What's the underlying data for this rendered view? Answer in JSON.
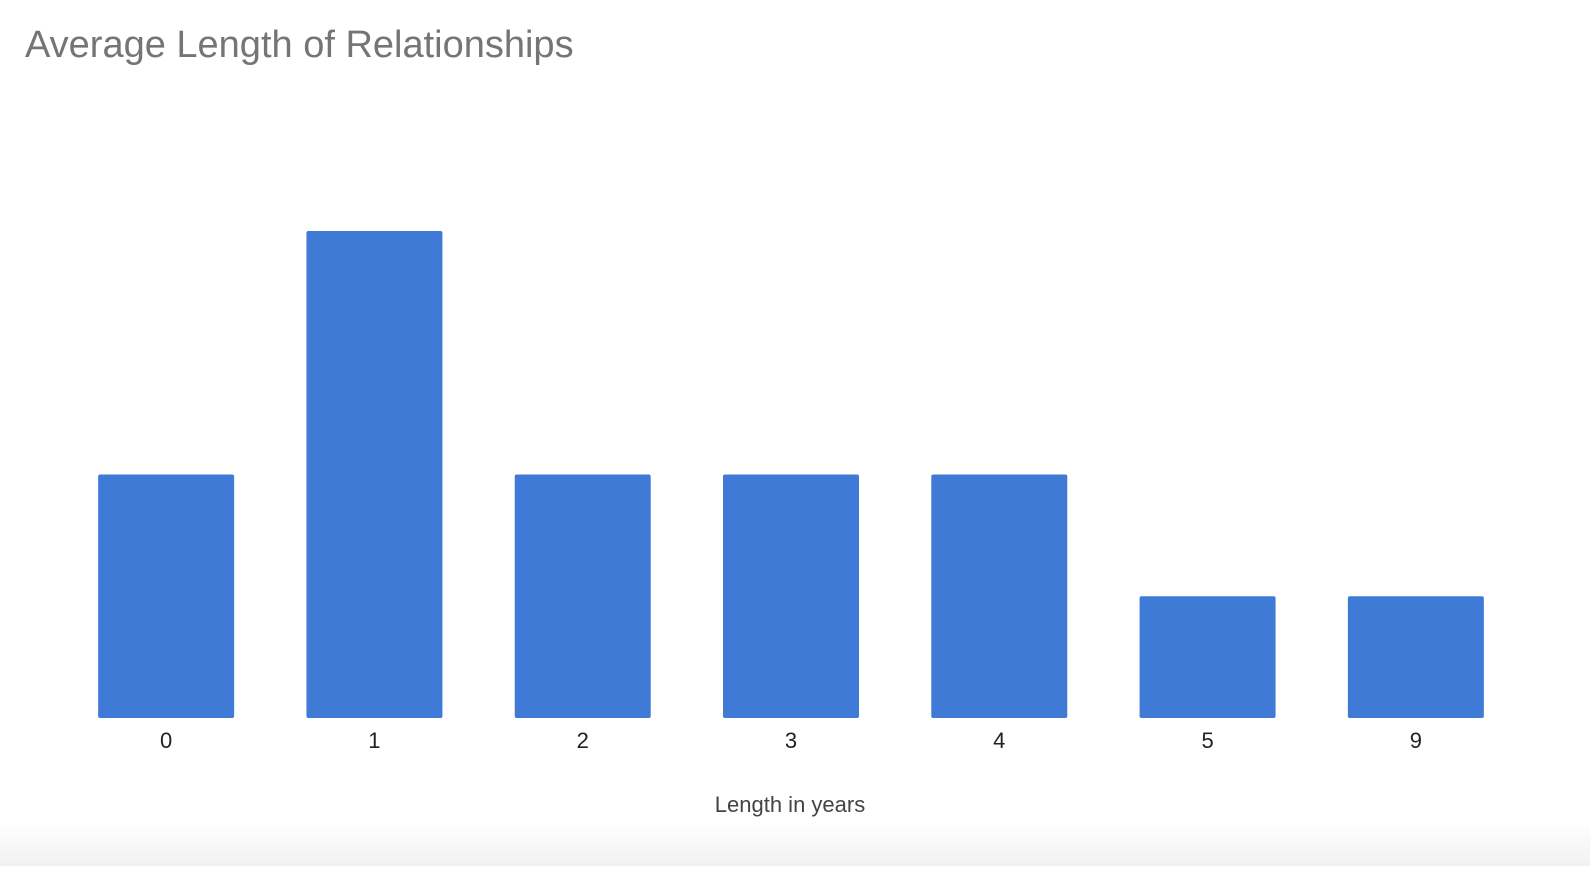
{
  "chart_data": {
    "type": "bar",
    "title": "Average Length of Relationships",
    "x_label": "Length in years",
    "categories": [
      "0",
      "1",
      "2",
      "3",
      "4",
      "5",
      "9"
    ],
    "values": [
      2,
      4,
      2,
      2,
      2,
      1,
      1
    ],
    "color": "#3f7ad6"
  }
}
